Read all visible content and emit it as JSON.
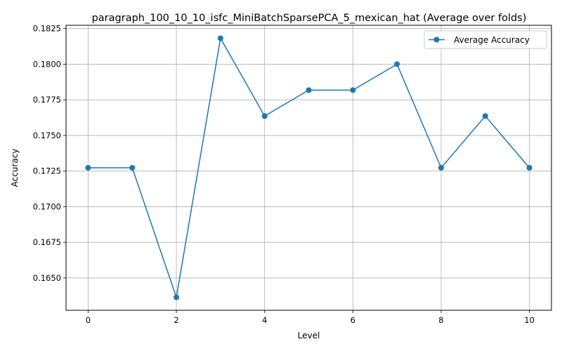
{
  "chart_data": {
    "type": "line",
    "title": "paragraph_100_10_10_isfc_MiniBatchSparsePCA_5_mexican_hat (Average over folds)",
    "xlabel": "Level",
    "ylabel": "Accuracy",
    "x": [
      0,
      1,
      2,
      3,
      4,
      5,
      6,
      7,
      8,
      9,
      10
    ],
    "series": [
      {
        "name": "Average Accuracy",
        "color": "#1f77b4",
        "marker": "circle",
        "values": [
          0.17273,
          0.17273,
          0.16364,
          0.18182,
          0.17636,
          0.17818,
          0.17818,
          0.18,
          0.17273,
          0.17636,
          0.17273
        ]
      }
    ],
    "xlim": [
      -0.5,
      10.5
    ],
    "ylim": [
      0.16273,
      0.18273
    ],
    "xticks": [
      0,
      2,
      4,
      6,
      8,
      10
    ],
    "xtick_labels": [
      "0",
      "2",
      "4",
      "6",
      "8",
      "10"
    ],
    "yticks": [
      0.165,
      0.1675,
      0.17,
      0.1725,
      0.175,
      0.1775,
      0.18,
      0.1825
    ],
    "ytick_labels": [
      "0.1650",
      "0.1675",
      "0.1700",
      "0.1725",
      "0.1750",
      "0.1775",
      "0.1800",
      "0.1825"
    ],
    "grid": true,
    "legend_position": "top-right",
    "grid_color": "#b0b0b0",
    "axis_color": "#000000"
  }
}
